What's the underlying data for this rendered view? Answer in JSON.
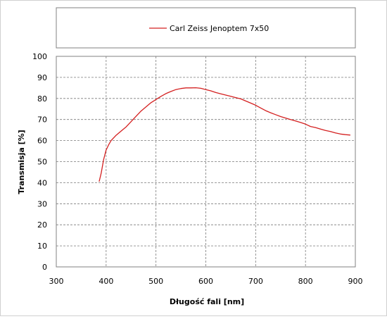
{
  "chart_data": {
    "type": "line",
    "title": "",
    "xlabel": "Długość fali [nm]",
    "ylabel": "Transmisja [%]",
    "xlim": [
      300,
      900
    ],
    "ylim": [
      0,
      100
    ],
    "xticks": [
      300,
      400,
      500,
      600,
      700,
      800,
      900
    ],
    "yticks": [
      0,
      10,
      20,
      30,
      40,
      50,
      60,
      70,
      80,
      90,
      100
    ],
    "grid": true,
    "legend_position": "top",
    "series": [
      {
        "name": "Carl Zeiss Jenoptem 7x50",
        "color": "#d42020",
        "x": [
          386,
          390,
          395,
          400,
          405,
          410,
          420,
          430,
          440,
          450,
          460,
          470,
          480,
          490,
          500,
          510,
          520,
          530,
          540,
          550,
          560,
          570,
          580,
          590,
          600,
          610,
          620,
          630,
          640,
          650,
          660,
          670,
          680,
          690,
          700,
          710,
          720,
          730,
          740,
          750,
          760,
          770,
          780,
          790,
          800,
          810,
          820,
          830,
          840,
          850,
          860,
          870,
          880,
          890
        ],
        "y": [
          40.5,
          44.5,
          51,
          55.5,
          58,
          60,
          62.5,
          64.5,
          66.5,
          69,
          71.5,
          74,
          76,
          78,
          79.5,
          81,
          82.3,
          83.3,
          84.2,
          84.7,
          85,
          85,
          85.1,
          84.8,
          84.2,
          83.6,
          82.8,
          82.2,
          81.6,
          81,
          80.4,
          79.8,
          78.8,
          77.8,
          76.8,
          75.5,
          74.2,
          73.2,
          72.3,
          71.4,
          70.7,
          70,
          69.3,
          68.6,
          67.8,
          66.7,
          66.2,
          65.5,
          64.8,
          64.3,
          63.6,
          63.1,
          62.8,
          62.6
        ]
      }
    ]
  }
}
